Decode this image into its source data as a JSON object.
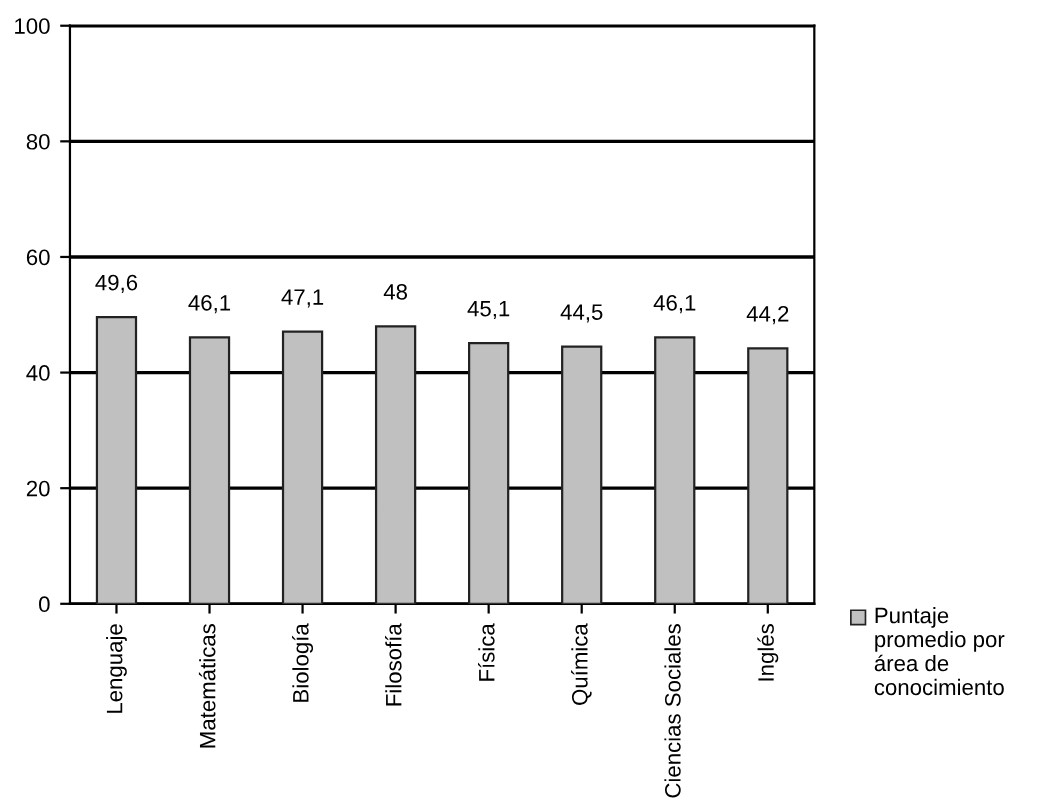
{
  "chart_data": {
    "type": "bar",
    "categories": [
      "Lenguaje",
      "Matemáticas",
      "Biología",
      "Filosofía",
      "Física",
      "Química",
      "Ciencias Sociales",
      "Inglés"
    ],
    "series": [
      {
        "name": "Puntaje promedio por área de conocimiento",
        "color": "#c0c0c0",
        "values": [
          49.6,
          46.1,
          47.1,
          48,
          45.1,
          44.5,
          46.1,
          44.2
        ],
        "value_labels": [
          "49,6",
          "46,1",
          "47,1",
          "48",
          "45,1",
          "44,5",
          "46,1",
          "44,2"
        ]
      }
    ],
    "ylim": [
      0,
      100
    ],
    "yticks": [
      0,
      20,
      40,
      60,
      80,
      100
    ],
    "grid": "y",
    "legend": "right"
  }
}
